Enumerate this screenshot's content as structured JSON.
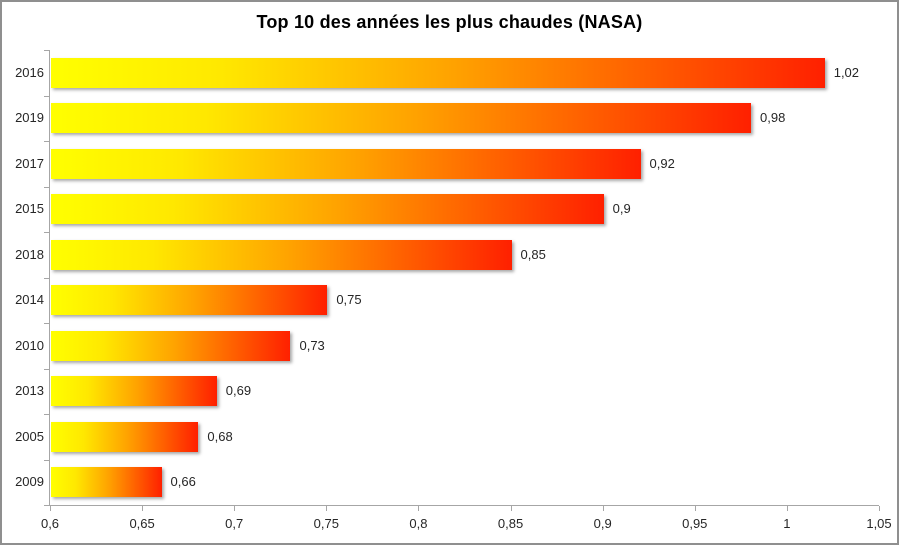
{
  "window": {
    "background_color": "#ffffff",
    "border_color": "#8f8f8f"
  },
  "chart_data": {
    "type": "bar",
    "orientation": "horizontal",
    "title": "Top 10 des années les plus chaudes (NASA)",
    "categories": [
      "2016",
      "2019",
      "2017",
      "2015",
      "2018",
      "2014",
      "2010",
      "2013",
      "2005",
      "2009"
    ],
    "values": [
      1.02,
      0.98,
      0.92,
      0.9,
      0.85,
      0.75,
      0.73,
      0.69,
      0.68,
      0.66
    ],
    "value_labels": [
      "1,02",
      "0,98",
      "0,92",
      "0,9",
      "0,85",
      "0,75",
      "0,73",
      "0,69",
      "0,68",
      "0,66"
    ],
    "xlabel": "",
    "ylabel": "",
    "xlim": [
      0.6,
      1.05
    ],
    "x_ticks": [
      0.6,
      0.65,
      0.7,
      0.75,
      0.8,
      0.85,
      0.9,
      0.95,
      1,
      1.05
    ],
    "x_tick_labels": [
      "0,6",
      "0,65",
      "0,7",
      "0,75",
      "0,8",
      "0,85",
      "0,9",
      "0,95",
      "1",
      "1,05"
    ],
    "grid": false,
    "legend": false,
    "bar_gradient": [
      "#ffff00",
      "#ffa200",
      "#ff2000"
    ],
    "axis_color": "#a6a6a6",
    "label_color": "#262626",
    "title_color": "#000000"
  }
}
